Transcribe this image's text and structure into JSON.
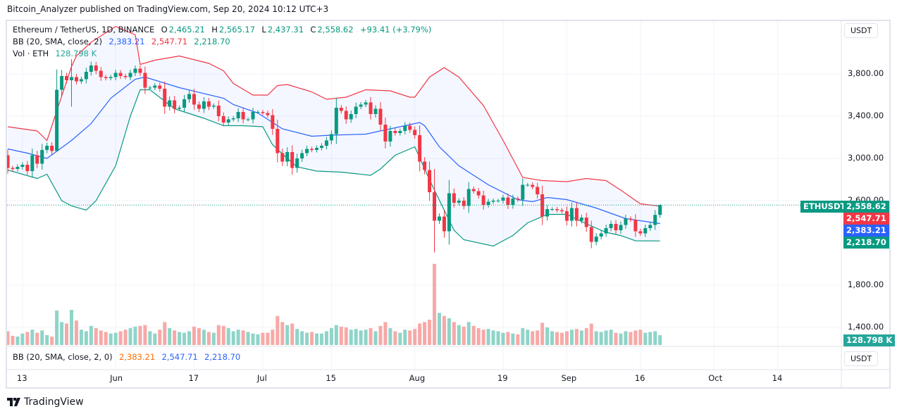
{
  "publisher": "Bitcoin_Analyzer published on TradingView.com, Sep 20, 2024 10:12 UTC+3",
  "header": {
    "symbol": "Ethereum / TetherUS, 1D, BINANCE",
    "o_label": "O",
    "o": "2,465.21",
    "h_label": "H",
    "h": "2,565.17",
    "l_label": "L",
    "l": "2,437.31",
    "c_label": "C",
    "c": "2,558.62",
    "change": "+93.41 (+3.79%)",
    "bb_label": "BB (20, SMA, close, 2)",
    "bb_basis": "2,383.21",
    "bb_upper": "2,547.71",
    "bb_lower": "2,218.70",
    "vol_label": "Vol · ETH",
    "vol_value": "128.798 K"
  },
  "lower_pane": {
    "label": "BB (20, SMA, close, 2, 0)",
    "v1": "2,383.21",
    "v2": "2,547.71",
    "v3": "2,218.70",
    "unit": "USDT"
  },
  "price_axis": {
    "unit": "USDT",
    "ticks": [
      "3,800.00",
      "3,400.00",
      "3,000.00",
      "2,600.00",
      "1,800.00",
      "1,400.00"
    ],
    "tick_values": [
      3800,
      3400,
      3000,
      2600,
      1800,
      1400
    ],
    "symbol_tag": "ETHUSDT",
    "last_price": "2,558.62",
    "upper_tag": "2,547.71",
    "basis_tag": "2,383.21",
    "lower_tag": "2,218.70",
    "volume_tag": "128.798 K"
  },
  "time_axis": {
    "ticks": [
      {
        "label": "13",
        "date": "2024-05-13"
      },
      {
        "label": "Jun",
        "date": "2024-06-01"
      },
      {
        "label": "17",
        "date": "2024-06-17"
      },
      {
        "label": "Jul",
        "date": "2024-07-01"
      },
      {
        "label": "15",
        "date": "2024-07-15"
      },
      {
        "label": "Aug",
        "date": "2024-08-01"
      },
      {
        "label": "19",
        "date": "2024-08-19"
      },
      {
        "label": "Sep",
        "date": "2024-09-01"
      },
      {
        "label": "16",
        "date": "2024-09-16"
      },
      {
        "label": "Oct",
        "date": "2024-10-01"
      },
      {
        "label": "14",
        "date": "2024-10-14"
      }
    ]
  },
  "colors": {
    "up": "#089981",
    "down": "#f23645",
    "vol_up": "#8fd4c8",
    "vol_down": "#f7a9a7",
    "bb_upper": "#f23645",
    "bb_basis": "#2962ff",
    "bb_lower": "#089981",
    "bb_fill": "#2962ff"
  },
  "footer": {
    "brand": "TradingView"
  },
  "chart_data": {
    "type": "candlestick",
    "first_open": 3030,
    "candles_date_close_volumeK": [
      [
        "2024-05-10",
        2910,
        180
      ],
      [
        "2024-05-11",
        2900,
        120
      ],
      [
        "2024-05-12",
        2920,
        110
      ],
      [
        "2024-05-13",
        2940,
        150
      ],
      [
        "2024-05-14",
        2880,
        170
      ],
      [
        "2024-05-15",
        3030,
        200
      ],
      [
        "2024-05-16",
        2950,
        160
      ],
      [
        "2024-05-17",
        3080,
        190
      ],
      [
        "2024-05-18",
        3120,
        130
      ],
      [
        "2024-05-19",
        3070,
        110
      ],
      [
        "2024-05-20",
        3650,
        450
      ],
      [
        "2024-05-21",
        3780,
        300
      ],
      [
        "2024-05-22",
        3740,
        280
      ],
      [
        "2024-05-23",
        3770,
        460
      ],
      [
        "2024-05-24",
        3730,
        320
      ],
      [
        "2024-05-25",
        3750,
        200
      ],
      [
        "2024-05-26",
        3820,
        180
      ],
      [
        "2024-05-27",
        3880,
        250
      ],
      [
        "2024-05-28",
        3830,
        220
      ],
      [
        "2024-05-29",
        3770,
        190
      ],
      [
        "2024-05-30",
        3760,
        170
      ],
      [
        "2024-05-31",
        3770,
        150
      ],
      [
        "2024-06-01",
        3810,
        160
      ],
      [
        "2024-06-02",
        3780,
        180
      ],
      [
        "2024-06-03",
        3770,
        200
      ],
      [
        "2024-06-04",
        3810,
        220
      ],
      [
        "2024-06-05",
        3850,
        240
      ],
      [
        "2024-06-06",
        3810,
        250
      ],
      [
        "2024-06-07",
        3670,
        260
      ],
      [
        "2024-06-08",
        3670,
        180
      ],
      [
        "2024-06-09",
        3690,
        150
      ],
      [
        "2024-06-10",
        3660,
        200
      ],
      [
        "2024-06-11",
        3490,
        300
      ],
      [
        "2024-06-12",
        3550,
        220
      ],
      [
        "2024-06-13",
        3470,
        190
      ],
      [
        "2024-06-14",
        3480,
        170
      ],
      [
        "2024-06-15",
        3560,
        160
      ],
      [
        "2024-06-16",
        3610,
        180
      ],
      [
        "2024-06-17",
        3510,
        240
      ],
      [
        "2024-06-18",
        3470,
        220
      ],
      [
        "2024-06-19",
        3540,
        200
      ],
      [
        "2024-06-20",
        3490,
        170
      ],
      [
        "2024-06-21",
        3500,
        160
      ],
      [
        "2024-06-22",
        3400,
        260
      ],
      [
        "2024-06-23",
        3340,
        250
      ],
      [
        "2024-06-24",
        3370,
        220
      ],
      [
        "2024-06-25",
        3380,
        180
      ],
      [
        "2024-06-26",
        3440,
        200
      ],
      [
        "2024-06-27",
        3370,
        190
      ],
      [
        "2024-06-28",
        3370,
        170
      ],
      [
        "2024-06-29",
        3440,
        150
      ],
      [
        "2024-06-30",
        3440,
        140
      ],
      [
        "2024-07-01",
        3430,
        160
      ],
      [
        "2024-07-02",
        3410,
        160
      ],
      [
        "2024-07-03",
        3280,
        200
      ],
      [
        "2024-07-04",
        3050,
        380
      ],
      [
        "2024-07-05",
        2970,
        300
      ],
      [
        "2024-07-06",
        3060,
        260
      ],
      [
        "2024-07-07",
        2910,
        280
      ],
      [
        "2024-07-08",
        3000,
        210
      ],
      [
        "2024-07-09",
        3050,
        180
      ],
      [
        "2024-07-10",
        3090,
        160
      ],
      [
        "2024-07-11",
        3080,
        170
      ],
      [
        "2024-07-12",
        3100,
        150
      ],
      [
        "2024-07-13",
        3120,
        150
      ],
      [
        "2024-07-14",
        3170,
        180
      ],
      [
        "2024-07-15",
        3230,
        220
      ],
      [
        "2024-07-16",
        3480,
        260
      ],
      [
        "2024-07-17",
        3450,
        240
      ],
      [
        "2024-07-18",
        3370,
        230
      ],
      [
        "2024-07-19",
        3420,
        200
      ],
      [
        "2024-07-20",
        3490,
        210
      ],
      [
        "2024-07-21",
        3510,
        190
      ],
      [
        "2024-07-22",
        3530,
        200
      ],
      [
        "2024-07-23",
        3420,
        220
      ],
      [
        "2024-07-24",
        3470,
        180
      ],
      [
        "2024-07-25",
        3320,
        250
      ],
      [
        "2024-07-26",
        3160,
        300
      ],
      [
        "2024-07-27",
        3260,
        220
      ],
      [
        "2024-07-28",
        3240,
        180
      ],
      [
        "2024-07-29",
        3260,
        160
      ],
      [
        "2024-07-30",
        3310,
        200
      ],
      [
        "2024-07-31",
        3270,
        190
      ],
      [
        "2024-08-01",
        3220,
        210
      ],
      [
        "2024-08-02",
        2970,
        280
      ],
      [
        "2024-08-03",
        2890,
        300
      ],
      [
        "2024-08-04",
        2680,
        330
      ],
      [
        "2024-08-05",
        2410,
        1060
      ],
      [
        "2024-08-06",
        2450,
        420
      ],
      [
        "2024-08-07",
        2310,
        380
      ],
      [
        "2024-08-08",
        2670,
        350
      ],
      [
        "2024-08-09",
        2580,
        300
      ],
      [
        "2024-08-10",
        2600,
        260
      ],
      [
        "2024-08-11",
        2550,
        240
      ],
      [
        "2024-08-12",
        2710,
        300
      ],
      [
        "2024-08-13",
        2690,
        250
      ],
      [
        "2024-08-14",
        2650,
        220
      ],
      [
        "2024-08-15",
        2560,
        200
      ],
      [
        "2024-08-16",
        2590,
        210
      ],
      [
        "2024-08-17",
        2600,
        190
      ],
      [
        "2024-08-18",
        2600,
        180
      ],
      [
        "2024-08-19",
        2630,
        160
      ],
      [
        "2024-08-20",
        2560,
        170
      ],
      [
        "2024-08-21",
        2620,
        150
      ],
      [
        "2024-08-22",
        2610,
        140
      ],
      [
        "2024-08-23",
        2750,
        220
      ],
      [
        "2024-08-24",
        2750,
        200
      ],
      [
        "2024-08-25",
        2730,
        180
      ],
      [
        "2024-08-26",
        2660,
        190
      ],
      [
        "2024-08-27",
        2450,
        290
      ],
      [
        "2024-08-28",
        2520,
        230
      ],
      [
        "2024-08-29",
        2520,
        180
      ],
      [
        "2024-08-30",
        2510,
        170
      ],
      [
        "2024-08-31",
        2500,
        160
      ],
      [
        "2024-09-01",
        2410,
        180
      ],
      [
        "2024-09-02",
        2530,
        200
      ],
      [
        "2024-09-03",
        2410,
        210
      ],
      [
        "2024-09-04",
        2440,
        190
      ],
      [
        "2024-09-05",
        2350,
        220
      ],
      [
        "2024-09-06",
        2210,
        280
      ],
      [
        "2024-09-07",
        2260,
        180
      ],
      [
        "2024-09-08",
        2290,
        170
      ],
      [
        "2024-09-09",
        2340,
        190
      ],
      [
        "2024-09-10",
        2380,
        200
      ],
      [
        "2024-09-11",
        2320,
        160
      ],
      [
        "2024-09-12",
        2370,
        150
      ],
      [
        "2024-09-13",
        2430,
        180
      ],
      [
        "2024-09-14",
        2420,
        170
      ],
      [
        "2024-09-15",
        2310,
        190
      ],
      [
        "2024-09-16",
        2290,
        200
      ],
      [
        "2024-09-17",
        2340,
        160
      ],
      [
        "2024-09-18",
        2370,
        170
      ],
      [
        "2024-09-19",
        2465.21,
        180
      ],
      [
        "2024-09-20",
        2558.62,
        128.798
      ]
    ],
    "wick_extremes": {
      "2024-05-20": {
        "low": 3070
      },
      "2024-05-23": {
        "high": 3940,
        "low": 3490
      },
      "2024-08-05": {
        "high": 2900,
        "low": 2110
      },
      "2024-09-20": {
        "high": 2565.17,
        "low": 2437.31
      }
    },
    "bollinger": {
      "upper": [
        [
          "2024-05-10",
          3300
        ],
        [
          "2024-05-16",
          3260
        ],
        [
          "2024-05-18",
          3170
        ],
        [
          "2024-05-20",
          3450
        ],
        [
          "2024-05-23",
          3870
        ],
        [
          "2024-05-24",
          3970
        ],
        [
          "2024-05-27",
          4100
        ],
        [
          "2024-06-01",
          4250
        ],
        [
          "2024-06-05",
          4170
        ],
        [
          "2024-06-06",
          3890
        ],
        [
          "2024-06-09",
          3930
        ],
        [
          "2024-06-14",
          3970
        ],
        [
          "2024-06-20",
          3900
        ],
        [
          "2024-06-23",
          3830
        ],
        [
          "2024-06-25",
          3710
        ],
        [
          "2024-06-29",
          3600
        ],
        [
          "2024-07-02",
          3600
        ],
        [
          "2024-07-04",
          3690
        ],
        [
          "2024-07-06",
          3700
        ],
        [
          "2024-07-11",
          3630
        ],
        [
          "2024-07-14",
          3560
        ],
        [
          "2024-07-18",
          3580
        ],
        [
          "2024-07-22",
          3650
        ],
        [
          "2024-07-27",
          3640
        ],
        [
          "2024-07-31",
          3580
        ],
        [
          "2024-08-01",
          3580
        ],
        [
          "2024-08-04",
          3770
        ],
        [
          "2024-08-07",
          3860
        ],
        [
          "2024-08-10",
          3770
        ],
        [
          "2024-08-15",
          3500
        ],
        [
          "2024-08-19",
          3170
        ],
        [
          "2024-08-23",
          2820
        ],
        [
          "2024-08-27",
          2790
        ],
        [
          "2024-09-01",
          2780
        ],
        [
          "2024-09-05",
          2810
        ],
        [
          "2024-09-09",
          2790
        ],
        [
          "2024-09-12",
          2700
        ],
        [
          "2024-09-16",
          2570
        ],
        [
          "2024-09-20",
          2547.71
        ]
      ],
      "basis": [
        [
          "2024-05-10",
          3090
        ],
        [
          "2024-05-14",
          3050
        ],
        [
          "2024-05-18",
          3000
        ],
        [
          "2024-05-23",
          3170
        ],
        [
          "2024-05-27",
          3330
        ],
        [
          "2024-05-31",
          3570
        ],
        [
          "2024-06-05",
          3750
        ],
        [
          "2024-06-07",
          3770
        ],
        [
          "2024-06-14",
          3670
        ],
        [
          "2024-06-23",
          3570
        ],
        [
          "2024-06-25",
          3510
        ],
        [
          "2024-06-30",
          3430
        ],
        [
          "2024-07-05",
          3280
        ],
        [
          "2024-07-11",
          3210
        ],
        [
          "2024-07-15",
          3220
        ],
        [
          "2024-07-22",
          3230
        ],
        [
          "2024-07-30",
          3310
        ],
        [
          "2024-08-02",
          3340
        ],
        [
          "2024-08-03",
          3310
        ],
        [
          "2024-08-06",
          3110
        ],
        [
          "2024-08-10",
          2930
        ],
        [
          "2024-08-16",
          2750
        ],
        [
          "2024-08-22",
          2610
        ],
        [
          "2024-08-25",
          2590
        ],
        [
          "2024-08-28",
          2630
        ],
        [
          "2024-09-01",
          2610
        ],
        [
          "2024-09-07",
          2530
        ],
        [
          "2024-09-13",
          2430
        ],
        [
          "2024-09-20",
          2383.21
        ]
      ],
      "lower": [
        [
          "2024-05-10",
          2890
        ],
        [
          "2024-05-16",
          2810
        ],
        [
          "2024-05-18",
          2850
        ],
        [
          "2024-05-21",
          2600
        ],
        [
          "2024-05-23",
          2550
        ],
        [
          "2024-05-26",
          2510
        ],
        [
          "2024-05-28",
          2600
        ],
        [
          "2024-06-01",
          2930
        ],
        [
          "2024-06-04",
          3400
        ],
        [
          "2024-06-06",
          3650
        ],
        [
          "2024-06-08",
          3650
        ],
        [
          "2024-06-13",
          3470
        ],
        [
          "2024-06-19",
          3380
        ],
        [
          "2024-06-23",
          3310
        ],
        [
          "2024-06-27",
          3310
        ],
        [
          "2024-07-01",
          3300
        ],
        [
          "2024-07-03",
          3130
        ],
        [
          "2024-07-06",
          3000
        ],
        [
          "2024-07-08",
          2920
        ],
        [
          "2024-07-12",
          2880
        ],
        [
          "2024-07-17",
          2870
        ],
        [
          "2024-07-23",
          2840
        ],
        [
          "2024-07-25",
          2900
        ],
        [
          "2024-07-28",
          3030
        ],
        [
          "2024-08-01",
          3110
        ],
        [
          "2024-08-03",
          2900
        ],
        [
          "2024-08-05",
          2700
        ],
        [
          "2024-08-09",
          2320
        ],
        [
          "2024-08-11",
          2230
        ],
        [
          "2024-08-17",
          2170
        ],
        [
          "2024-08-21",
          2270
        ],
        [
          "2024-08-24",
          2390
        ],
        [
          "2024-08-28",
          2470
        ],
        [
          "2024-09-01",
          2470
        ],
        [
          "2024-09-05",
          2380
        ],
        [
          "2024-09-09",
          2300
        ],
        [
          "2024-09-12",
          2270
        ],
        [
          "2024-09-15",
          2220
        ],
        [
          "2024-09-20",
          2218.7
        ]
      ]
    }
  }
}
